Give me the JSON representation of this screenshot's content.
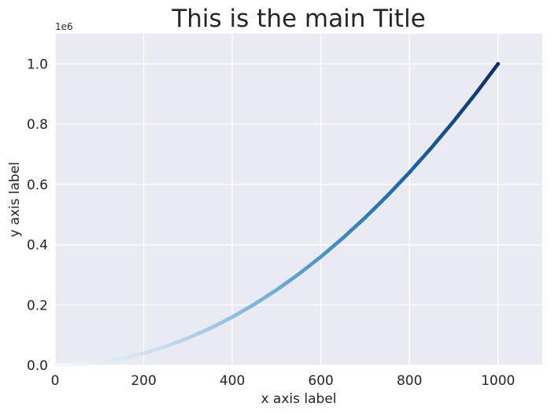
{
  "chart_data": {
    "type": "scatter",
    "title": "This is the main Title",
    "xlabel": "x axis label",
    "ylabel": "y axis label",
    "y_offset_label": "1e6",
    "xlim": [
      0,
      1100
    ],
    "ylim": [
      0,
      1.1
    ],
    "x_ticks": [
      0,
      200,
      400,
      600,
      800,
      1000
    ],
    "x_tick_labels": [
      "0",
      "200",
      "400",
      "600",
      "800",
      "1000"
    ],
    "y_ticks": [
      0.0,
      0.2,
      0.4,
      0.6,
      0.8,
      1.0
    ],
    "y_tick_labels": [
      "0.0",
      "0.2",
      "0.4",
      "0.6",
      "0.8",
      "1.0"
    ],
    "grid": true,
    "colormap": "Blues",
    "x": [
      0,
      50,
      100,
      150,
      200,
      250,
      300,
      350,
      400,
      450,
      500,
      550,
      600,
      650,
      700,
      750,
      800,
      850,
      900,
      950,
      1000
    ],
    "y": [
      0.0,
      0.0025,
      0.01,
      0.0225,
      0.04,
      0.0625,
      0.09,
      0.1225,
      0.16,
      0.2025,
      0.25,
      0.3025,
      0.36,
      0.4225,
      0.49,
      0.5625,
      0.64,
      0.7225,
      0.81,
      0.9025,
      1.0
    ]
  }
}
